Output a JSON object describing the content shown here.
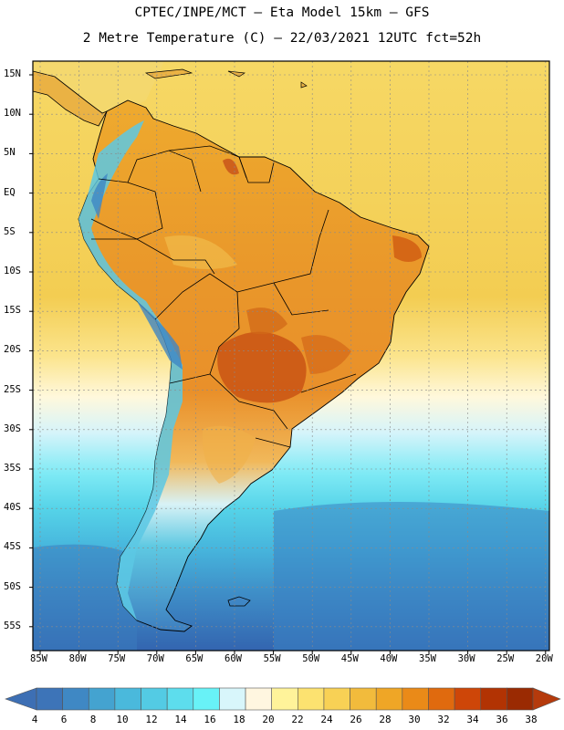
{
  "title_line1": "CPTEC/INPE/MCT —  Eta Model 15km — GFS",
  "title_line2": "2 Metre Temperature (C) — 22/03/2021 12UTC fct=52h",
  "lat_labels": [
    "15N",
    "10N",
    "5N",
    "EQ",
    "5S",
    "10S",
    "15S",
    "20S",
    "25S",
    "30S",
    "35S",
    "40S",
    "45S",
    "50S",
    "55S"
  ],
  "lon_labels": [
    "85W",
    "80W",
    "75W",
    "70W",
    "65W",
    "60W",
    "55W",
    "50W",
    "45W",
    "40W",
    "35W",
    "30W",
    "25W",
    "20W"
  ],
  "colorbar": {
    "labels": [
      "4",
      "6",
      "8",
      "10",
      "12",
      "14",
      "16",
      "18",
      "20",
      "22",
      "24",
      "26",
      "28",
      "30",
      "32",
      "34",
      "36",
      "38"
    ],
    "colors": [
      "#3d74b8",
      "#3f88c4",
      "#44a3d0",
      "#4ab9dc",
      "#53cbe4",
      "#5ddded",
      "#68f2f7",
      "#d8f6fb",
      "#fff6e0",
      "#fff39a",
      "#fce270",
      "#f8d155",
      "#f2bb3c",
      "#efa626",
      "#ea8a18",
      "#e06a0e",
      "#ce4608",
      "#b23303",
      "#9a2a02"
    ],
    "under_color": "#3d6fb4",
    "over_color": "#b53a0c"
  },
  "colors": {
    "ocean_warm": "#f3cf58",
    "land_hot": "#e7871c",
    "ocean_cold": "#2f6fb4",
    "frame": "#000000",
    "grid": "#8a8a8a"
  }
}
